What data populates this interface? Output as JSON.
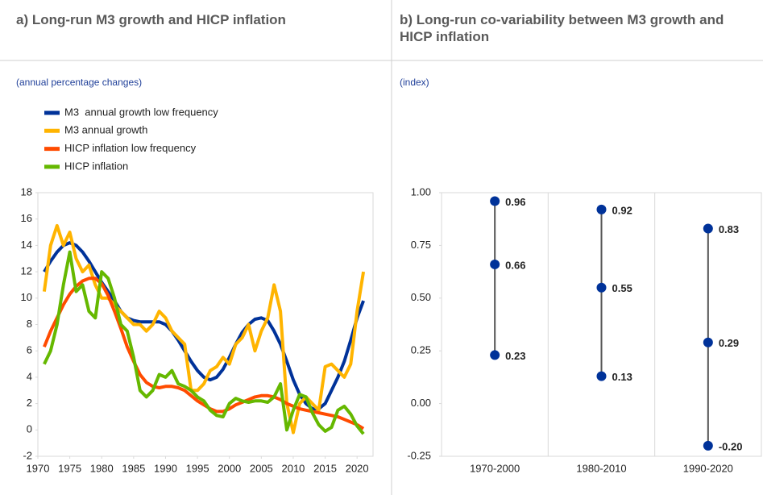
{
  "chart_data": [
    {
      "type": "line",
      "title": "a) Long-run M3 growth and HICP inflation",
      "subtitle": "(annual percentage changes)",
      "x": [
        1971,
        1972,
        1973,
        1974,
        1975,
        1976,
        1977,
        1978,
        1979,
        1980,
        1981,
        1982,
        1983,
        1984,
        1985,
        1986,
        1987,
        1988,
        1989,
        1990,
        1991,
        1992,
        1993,
        1994,
        1995,
        1996,
        1997,
        1998,
        1999,
        2000,
        2001,
        2002,
        2003,
        2004,
        2005,
        2006,
        2007,
        2008,
        2009,
        2010,
        2011,
        2012,
        2013,
        2014,
        2015,
        2016,
        2017,
        2018,
        2019,
        2020,
        2021
      ],
      "series": [
        {
          "name": "M3  annual growth low frequency",
          "color": "#003299",
          "values": [
            12,
            12.8,
            13.5,
            14,
            14.2,
            14,
            13.5,
            12.8,
            12,
            11.2,
            10.5,
            9.8,
            9,
            8.5,
            8.3,
            8.2,
            8.2,
            8.2,
            8.2,
            8,
            7.5,
            6.8,
            6,
            5.2,
            4.5,
            4,
            3.8,
            4,
            4.6,
            5.5,
            6.5,
            7.4,
            8,
            8.4,
            8.5,
            8.3,
            7.5,
            6.5,
            5.2,
            3.8,
            2.7,
            2,
            1.6,
            1.6,
            2,
            3,
            4,
            5.2,
            6.8,
            8.5,
            9.8
          ]
        },
        {
          "name": "M3 annual growth",
          "color": "#ffb400",
          "values": [
            10.5,
            14,
            15.5,
            14,
            15,
            13,
            12,
            12.5,
            11,
            10,
            10,
            9.5,
            9,
            8.5,
            8,
            8,
            7.5,
            8,
            9,
            8.5,
            7.5,
            7,
            6.5,
            3,
            3,
            3.5,
            4.5,
            4.8,
            5.5,
            5,
            6.5,
            7,
            8,
            6,
            7.5,
            8.5,
            11,
            9,
            2,
            -0.2,
            2,
            2.5,
            2,
            1.5,
            4.8,
            5,
            4.5,
            4,
            5,
            9,
            12
          ]
        },
        {
          "name": "HICP inflation low frequency",
          "color": "#ff4b00",
          "values": [
            6.3,
            7.5,
            8.5,
            9.5,
            10.3,
            10.9,
            11.3,
            11.5,
            11.5,
            11.1,
            10.2,
            9,
            7.7,
            6.3,
            5.2,
            4.2,
            3.6,
            3.3,
            3.2,
            3.3,
            3.3,
            3.2,
            3,
            2.6,
            2.2,
            1.9,
            1.6,
            1.4,
            1.4,
            1.6,
            1.9,
            2.1,
            2.3,
            2.5,
            2.6,
            2.6,
            2.5,
            2.3,
            2,
            1.8,
            1.6,
            1.5,
            1.4,
            1.3,
            1.2,
            1.1,
            1,
            0.8,
            0.6,
            0.4,
            0.1
          ]
        },
        {
          "name": "HICP inflation",
          "color": "#65b800",
          "values": [
            5,
            6,
            8,
            11,
            13.5,
            10.5,
            11,
            9,
            8.5,
            12,
            11.5,
            10,
            8,
            7.5,
            5.5,
            3,
            2.5,
            3,
            4.2,
            4,
            4.5,
            3.5,
            3.3,
            3,
            2.5,
            2.2,
            1.5,
            1.1,
            1,
            2,
            2.4,
            2.2,
            2.1,
            2.2,
            2.2,
            2.1,
            2.5,
            3.5,
            0,
            1.5,
            2.7,
            2.5,
            1.3,
            0.4,
            -0.1,
            0.2,
            1.5,
            1.8,
            1.2,
            0.3,
            -0.3
          ]
        }
      ],
      "xlim": [
        1970,
        2022.5
      ],
      "xticks": [
        1970,
        1975,
        1980,
        1985,
        1990,
        1995,
        2000,
        2005,
        2010,
        2015,
        2020
      ],
      "ylim": [
        -2,
        18
      ],
      "yticks": [
        -2,
        0,
        2,
        4,
        6,
        8,
        10,
        12,
        14,
        16,
        18
      ]
    },
    {
      "type": "dot",
      "title": "b) Long-run co-variability between M3 growth and HICP inflation",
      "subtitle": "(index)",
      "categories": [
        "1970-2000",
        "1980-2010",
        "1990-2020"
      ],
      "values": [
        [
          0.96,
          0.66,
          0.23
        ],
        [
          0.92,
          0.55,
          0.13
        ],
        [
          0.83,
          0.29,
          -0.2
        ]
      ],
      "value_labels": [
        [
          "0.96",
          "0.66",
          "0.23"
        ],
        [
          "0.92",
          "0.55",
          "0.13"
        ],
        [
          "0.83",
          "0.29",
          "-0.20"
        ]
      ],
      "color": "#003299",
      "line_color": "#555555",
      "ylim": [
        -0.25,
        1
      ],
      "yticks": [
        {
          "value": 1,
          "label": "1.00"
        },
        {
          "value": 0.75,
          "label": "0.75"
        },
        {
          "value": 0.5,
          "label": "0.50"
        },
        {
          "value": 0.25,
          "label": "0.25"
        },
        {
          "value": 0,
          "label": "0.00"
        },
        {
          "value": -0.25,
          "label": "-0.25"
        }
      ]
    }
  ]
}
